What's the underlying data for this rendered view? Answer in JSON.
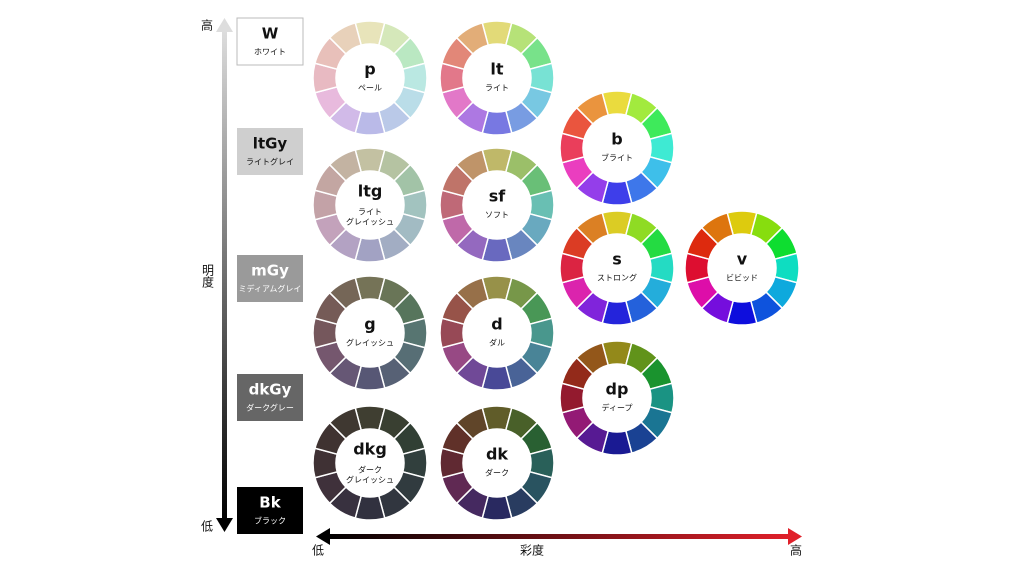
{
  "axes": {
    "vertical": {
      "high": "高",
      "label": "明度",
      "low": "低"
    },
    "horizontal": {
      "low": "低",
      "label": "彩度",
      "high": "高"
    }
  },
  "gray_scale": [
    {
      "code": "W",
      "name": "ホワイト"
    },
    {
      "code": "ltGy",
      "name": "ライトグレイ"
    },
    {
      "code": "mGy",
      "name": "ミディアムグレイ"
    },
    {
      "code": "dkGy",
      "name": "ダークグレー"
    },
    {
      "code": "Bk",
      "name": "ブラック"
    }
  ],
  "tones": [
    {
      "code": "p",
      "name": [
        "ペール"
      ]
    },
    {
      "code": "lt",
      "name": [
        "ライト"
      ]
    },
    {
      "code": "b",
      "name": [
        "ブライト"
      ]
    },
    {
      "code": "ltg",
      "name": [
        "ライト",
        "グレイッシュ"
      ]
    },
    {
      "code": "sf",
      "name": [
        "ソフト"
      ]
    },
    {
      "code": "s",
      "name": [
        "ストロング"
      ]
    },
    {
      "code": "v",
      "name": [
        "ビビッド"
      ]
    },
    {
      "code": "g",
      "name": [
        "グレイッシュ"
      ]
    },
    {
      "code": "d",
      "name": [
        "ダル"
      ]
    },
    {
      "code": "dp",
      "name": [
        "ディープ"
      ]
    },
    {
      "code": "dkg",
      "name": [
        "ダーク",
        "グレイッシュ"
      ]
    },
    {
      "code": "dk",
      "name": [
        "ダーク"
      ]
    }
  ]
}
